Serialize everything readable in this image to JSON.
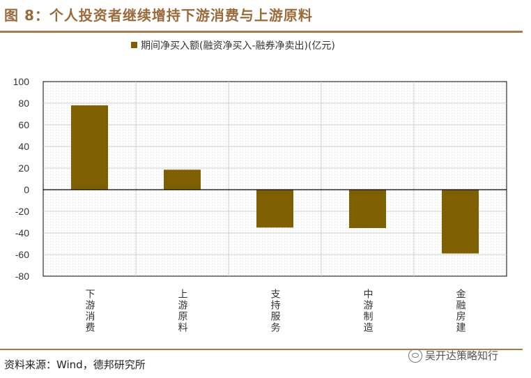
{
  "header": {
    "figure_title": "图 8：个人投资者继续增持下游消费与上游原料"
  },
  "footer": {
    "source": "资料来源：Wind，德邦研究所",
    "watermark": "吴开达策略知行"
  },
  "colors": {
    "bar": "#7f6000",
    "rule": "#a57a4d",
    "title": "#9a6a3a"
  },
  "chart_data": {
    "type": "bar",
    "title": "",
    "legend_position": "top-center",
    "grid": true,
    "ylim": [
      -80,
      100
    ],
    "yticks": [
      "100",
      "80",
      "60",
      "40",
      "20",
      "0",
      "-20",
      "-40",
      "-60",
      "-80"
    ],
    "categories": [
      "下游消费",
      "上游原料",
      "支持服务",
      "中游制造",
      "金融房建"
    ],
    "series": [
      {
        "name": "期间净买入额(融资净买入-融券净卖出)(亿元)",
        "color": "#7f6000",
        "values": [
          78,
          18.5,
          -35,
          -35.5,
          -59
        ]
      }
    ]
  }
}
